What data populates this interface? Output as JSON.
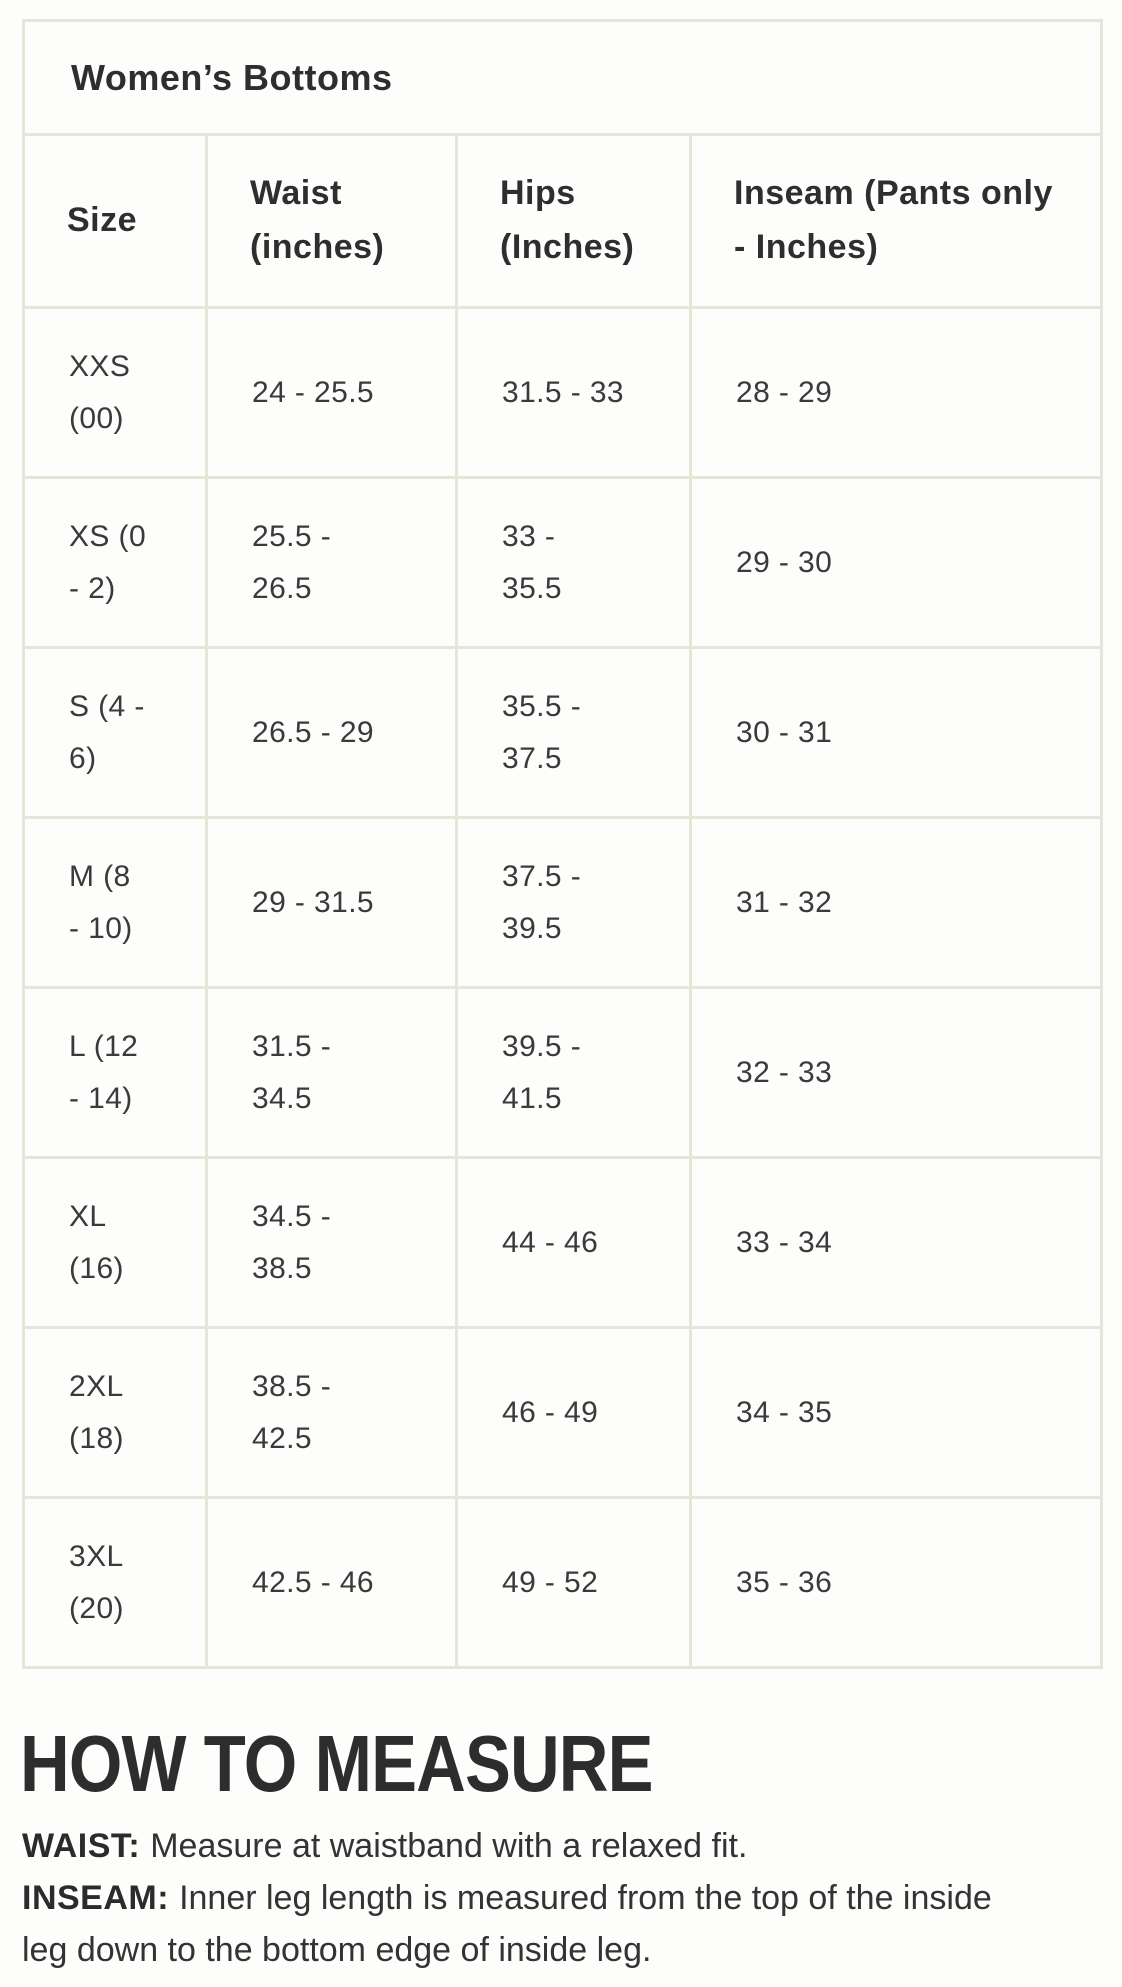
{
  "table": {
    "title": "Women’s Bottoms",
    "columns": [
      "Size",
      "Waist\n(inches)",
      "Hips\n(Inches)",
      "Inseam (Pants only\n- Inches)"
    ],
    "rows": [
      [
        "XXS\n(00)",
        "24 - 25.5",
        "31.5 - 33",
        "28 - 29"
      ],
      [
        "XS (0\n- 2)",
        "25.5 -\n26.5",
        "33 -\n35.5",
        "29 - 30"
      ],
      [
        "S (4 -\n6)",
        "26.5 - 29",
        "35.5 -\n37.5",
        "30 - 31"
      ],
      [
        "M (8\n- 10)",
        "29 - 31.5",
        "37.5 -\n39.5",
        "31 - 32"
      ],
      [
        "L (12\n- 14)",
        "31.5 -\n34.5",
        "39.5 -\n41.5",
        "32 - 33"
      ],
      [
        "XL\n(16)",
        "34.5 -\n38.5",
        "44 - 46",
        "33 - 34"
      ],
      [
        "2XL\n(18)",
        "38.5 -\n42.5",
        "46 - 49",
        "34 - 35"
      ],
      [
        "3XL\n(20)",
        "42.5 - 46",
        "49 - 52",
        "35 - 36"
      ]
    ]
  },
  "how_to_measure": {
    "heading": "HOW TO MEASURE",
    "items": [
      {
        "label": "WAIST:",
        "text": "Measure at waistband with a relaxed fit."
      },
      {
        "label": "INSEAM:",
        "text": "Inner leg length is measured from the top of the inside\nleg down to the bottom edge of inside leg."
      }
    ]
  },
  "colors": {
    "background": "#fdfdfb",
    "border": "#e7e4da",
    "text_dark": "#2e2e2e",
    "text_data": "#3a3a3a"
  }
}
